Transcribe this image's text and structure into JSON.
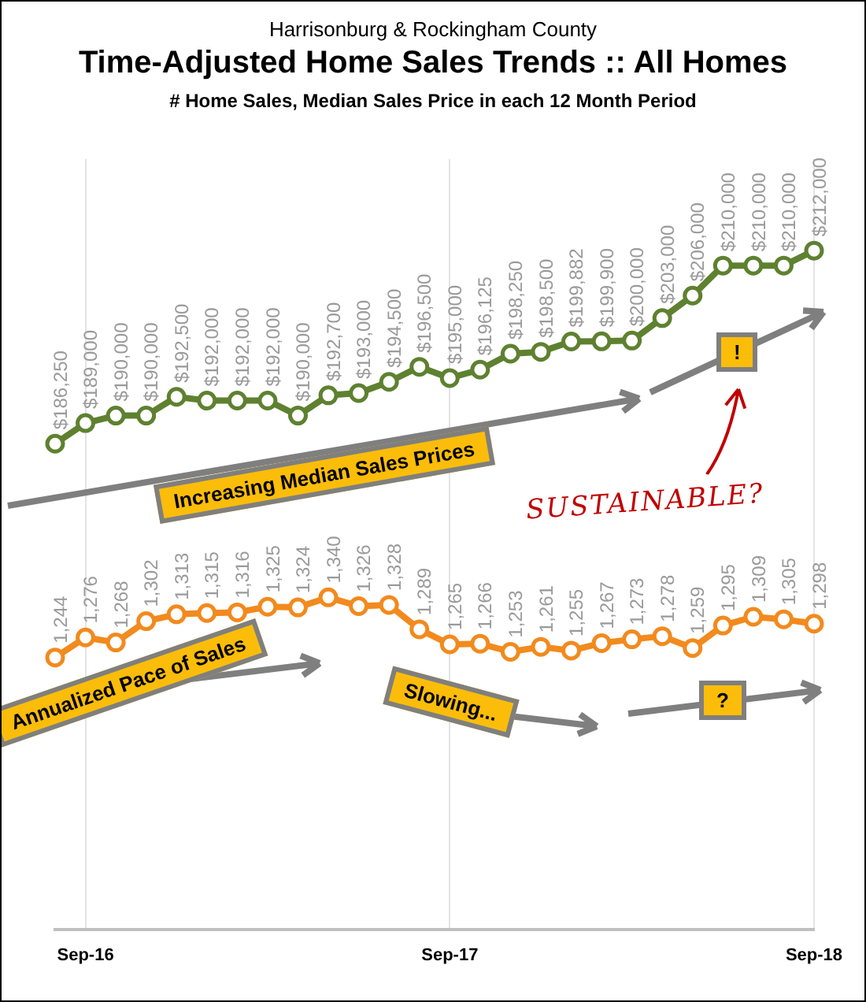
{
  "chart_data": {
    "type": "line",
    "title": "Time-Adjusted Home Sales Trends  ::  All Homes",
    "subtitle": "# Home Sales, Median Sales Price in each 12 Month Period",
    "categories": [
      null,
      "Sep-16",
      null,
      null,
      null,
      null,
      null,
      null,
      null,
      null,
      null,
      null,
      null,
      "Sep-17",
      null,
      null,
      null,
      null,
      null,
      null,
      null,
      null,
      null,
      null,
      null,
      "Sep-18"
    ],
    "series": [
      {
        "color": "#5e8130",
        "values": [
          186250,
          189000,
          190000,
          190000,
          192500,
          192000,
          192000,
          192000,
          190000,
          192700,
          193000,
          194500,
          196500,
          195000,
          196125,
          198250,
          198500,
          199882,
          199900,
          200000,
          203000,
          206000,
          210000,
          210000,
          210000,
          212000
        ],
        "value_labels": [
          "$186,250",
          "$189,000",
          "$190,000",
          "$190,000",
          "$192,500",
          "$192,000",
          "$192,000",
          "$192,000",
          "$190,000",
          "$192,700",
          "$193,000",
          "$194,500",
          "$196,500",
          "$195,000",
          "$196,125",
          "$198,250",
          "$198,500",
          "$199,882",
          "$199,900",
          "$200,000",
          "$203,000",
          "$206,000",
          "$210,000",
          "$210,000",
          "$210,000",
          "$212,000"
        ]
      },
      {
        "color": "#f28a1e",
        "axis": "y2",
        "values": [
          1244,
          1276,
          1268,
          1302,
          1313,
          1315,
          1316,
          1325,
          1324,
          1340,
          1326,
          1328,
          1289,
          1265,
          1266,
          1253,
          1261,
          1255,
          1267,
          1273,
          1278,
          1259,
          1295,
          1309,
          1305,
          1298
        ],
        "value_labels": [
          "1,244",
          "1,276",
          "1,268",
          "1,302",
          "1,313",
          "1,315",
          "1,316",
          "1,325",
          "1,324",
          "1,340",
          "1,326",
          "1,328",
          "1,289",
          "1,265",
          "1,266",
          "1,253",
          "1,261",
          "1,255",
          "1,267",
          "1,273",
          "1,278",
          "1,259",
          "1,295",
          "1,309",
          "1,305",
          "1,298"
        ]
      }
    ],
    "ylim": [
      121500,
      224200
    ],
    "y2lim": [
      810,
      2040
    ],
    "grid": "x",
    "legend": false,
    "tick_labels": "x",
    "marker": "circle",
    "line_style": "solid",
    "annotations": [
      "Harrisonburg & Rockingham County",
      "Increasing Median Sales Prices",
      "!",
      "SUSTAINABLE?",
      "Annualized Pace of Sales",
      "Slowing...",
      "?"
    ]
  }
}
